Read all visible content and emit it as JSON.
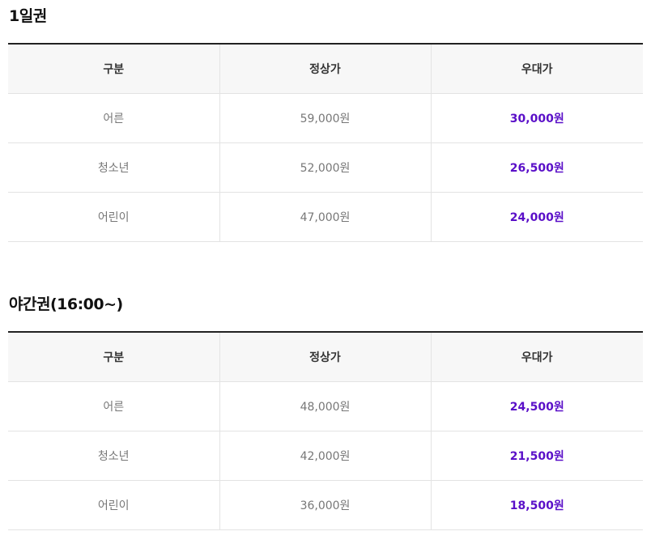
{
  "sections": [
    {
      "title": "1일권",
      "headers": [
        "구분",
        "정상가",
        "우대가"
      ],
      "rows": [
        {
          "category": "어른",
          "regular": "59,000원",
          "discount": "30,000원"
        },
        {
          "category": "청소년",
          "regular": "52,000원",
          "discount": "26,500원"
        },
        {
          "category": "어린이",
          "regular": "47,000원",
          "discount": "24,000원"
        }
      ]
    },
    {
      "title": "야간권(16:00~)",
      "headers": [
        "구분",
        "정상가",
        "우대가"
      ],
      "rows": [
        {
          "category": "어른",
          "regular": "48,000원",
          "discount": "24,500원"
        },
        {
          "category": "청소년",
          "regular": "42,000원",
          "discount": "21,500원"
        },
        {
          "category": "어린이",
          "regular": "36,000원",
          "discount": "18,500원"
        }
      ]
    }
  ],
  "colors": {
    "discount": "#5a0fc8",
    "header_bg": "#f7f7f7",
    "top_rule": "#222222"
  }
}
